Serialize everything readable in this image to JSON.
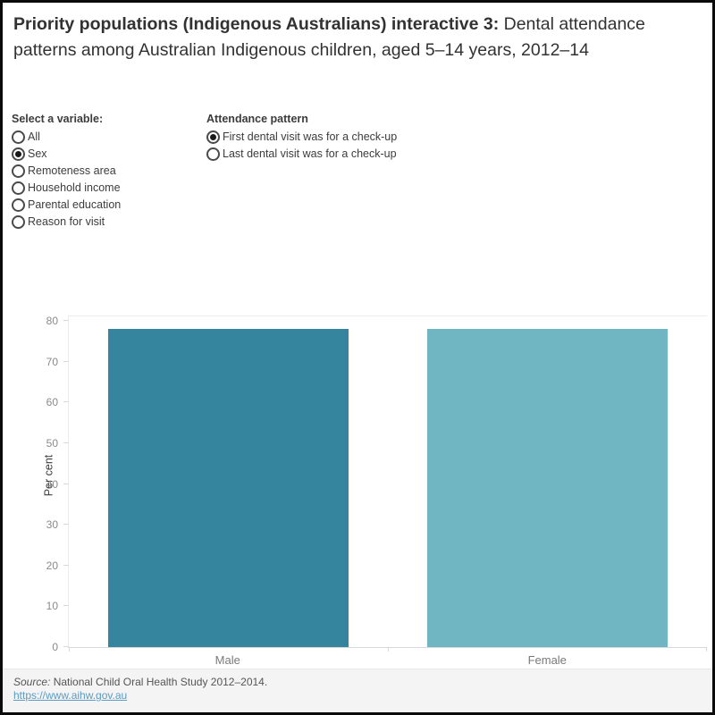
{
  "title": {
    "bold": "Priority populations (Indigenous Australians) interactive 3:",
    "regular": " Dental attendance patterns among Australian Indigenous children, aged 5–14 years, 2012–14"
  },
  "controls": {
    "variable_group": {
      "label": "Select a variable:",
      "options": [
        {
          "label": "All",
          "selected": false
        },
        {
          "label": "Sex",
          "selected": true
        },
        {
          "label": "Remoteness area",
          "selected": false
        },
        {
          "label": "Household income",
          "selected": false
        },
        {
          "label": "Parental education",
          "selected": false
        },
        {
          "label": "Reason for visit",
          "selected": false
        }
      ]
    },
    "attendance_group": {
      "label": "Attendance pattern",
      "options": [
        {
          "label": "First dental visit was for a check-up",
          "selected": true
        },
        {
          "label": "Last dental visit was for a check-up",
          "selected": false
        }
      ]
    }
  },
  "chart_data": {
    "type": "bar",
    "categories": [
      "Male",
      "Female"
    ],
    "values": [
      78,
      78
    ],
    "title": "",
    "xlabel": "",
    "ylabel": "Per cent",
    "ylim": [
      0,
      80
    ],
    "yticks": [
      0,
      10,
      20,
      30,
      40,
      50,
      60,
      70,
      80
    ],
    "bar_colors": [
      "#36859e",
      "#6fb6c2"
    ],
    "grid": false,
    "legend": "none"
  },
  "footer": {
    "source_label": "Source:",
    "source_text": " National Child Oral Health Study 2012–2014.",
    "link": "https://www.aihw.gov.au"
  },
  "colors": {
    "male_bar": "#36859e",
    "female_bar": "#6fb6c2",
    "link": "#5b9bc4",
    "footer_bg": "#f4f4f4",
    "axis_tick_text": "#8a8a8a"
  }
}
